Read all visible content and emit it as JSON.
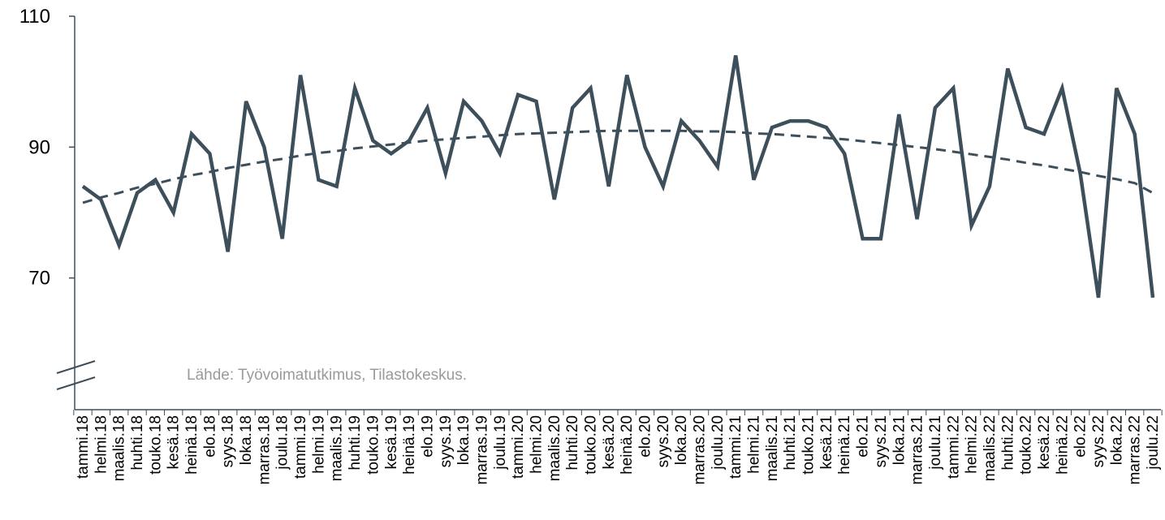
{
  "chart_data": {
    "type": "line",
    "source_note": "Lähde: Työvoimatutkimus, Tilastokeskus.",
    "ylim": [
      50,
      110
    ],
    "yticks": [
      70,
      90,
      110
    ],
    "axis_break": true,
    "grid": false,
    "categories": [
      "tammi.18",
      "helmi.18",
      "maalis.18",
      "huhti.18",
      "touko.18",
      "kesä.18",
      "heinä.18",
      "elo.18",
      "syys.18",
      "loka.18",
      "marras.18",
      "joulu.18",
      "tammi.19",
      "helmi.19",
      "maalis.19",
      "huhti.19",
      "touko.19",
      "kesä.19",
      "heinä.19",
      "elo.19",
      "syys.19",
      "loka.19",
      "marras.19",
      "joulu.19",
      "tammi.20",
      "helmi.20",
      "maalis.20",
      "huhti.20",
      "touko.20",
      "kesä.20",
      "heinä.20",
      "elo.20",
      "syys.20",
      "loka.20",
      "marras.20",
      "joulu.20",
      "tammi.21",
      "helmi.21",
      "maalis.21",
      "huhti.21",
      "touko.21",
      "kesä.21",
      "heinä.21",
      "elo.21",
      "syys.21",
      "loka.21",
      "marras.21",
      "joulu.21",
      "tammi.22",
      "helmi.22",
      "maalis.22",
      "huhti.22",
      "touko.22",
      "kesä.22",
      "heinä.22",
      "elo.22",
      "syys.22",
      "loka.22",
      "marras.22",
      "joulu.22"
    ],
    "series": [
      {
        "style": "solid",
        "color": "#3e4f5c",
        "values": [
          84,
          82,
          75,
          83,
          85,
          80,
          92,
          89,
          74,
          97,
          90,
          76,
          101,
          85,
          84,
          99,
          91,
          89,
          91,
          96,
          86,
          97,
          94,
          89,
          98,
          97,
          82,
          96,
          99,
          84,
          101,
          90,
          84,
          94,
          91,
          87,
          104,
          85,
          93,
          94,
          94,
          93,
          89,
          76,
          76,
          95,
          79,
          96,
          99,
          78,
          84,
          102,
          93,
          92,
          99,
          86,
          67,
          99,
          92,
          67
        ]
      },
      {
        "style": "dashed",
        "color": "#3e4f5c",
        "values": [
          81.5,
          82.3,
          83.0,
          83.8,
          84.4,
          85.1,
          85.7,
          86.2,
          86.8,
          87.3,
          87.8,
          88.2,
          88.7,
          89.1,
          89.4,
          89.8,
          90.1,
          90.4,
          90.7,
          91.0,
          91.2,
          91.4,
          91.6,
          91.8,
          92.0,
          92.1,
          92.2,
          92.3,
          92.4,
          92.5,
          92.5,
          92.5,
          92.5,
          92.5,
          92.4,
          92.4,
          92.3,
          92.1,
          92.0,
          91.8,
          91.6,
          91.4,
          91.2,
          90.9,
          90.6,
          90.3,
          90.0,
          89.7,
          89.3,
          88.9,
          88.5,
          88.1,
          87.6,
          87.2,
          86.7,
          86.2,
          85.6,
          85.1,
          84.5,
          83.0
        ]
      }
    ]
  }
}
